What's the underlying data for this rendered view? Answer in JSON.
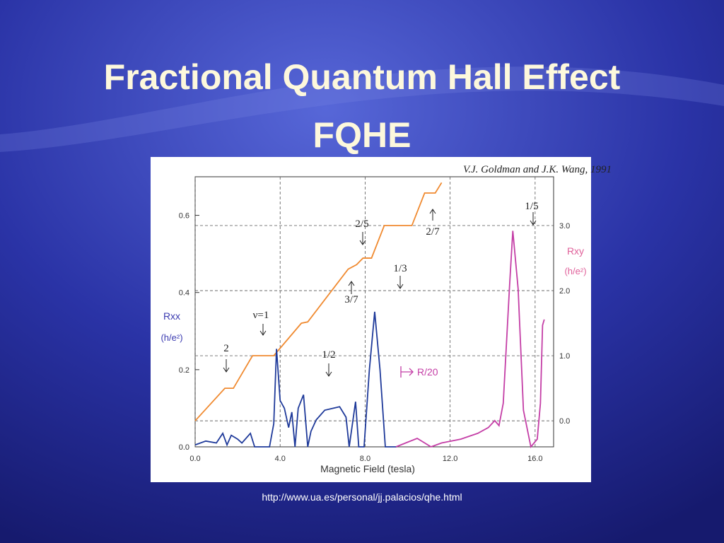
{
  "slide": {
    "title": [
      "Fractional Quantum Hall Effect",
      "FQHE"
    ],
    "caption": "http://www.ua.es/personal/jj.palacios/qhe.html"
  },
  "chart_data": {
    "type": "line",
    "x_label": "Magnetic Field (tesla)",
    "y_label": "Rxx",
    "y_units": "(h/e²)",
    "y2_label": "Rxy",
    "y2_units": "(h/e²)",
    "annotations": [
      "V.J. Goldman and J.K. Wang, 1991",
      "ν=1",
      "2",
      "2/5",
      "2/7",
      "1/3",
      "3/7",
      "1/2",
      "1/5"
    ],
    "xlim": [
      0,
      16.87
    ],
    "xticks": [
      {
        "value": 0,
        "label": "0.0"
      },
      {
        "value": 4,
        "label": "4.0"
      },
      {
        "value": 8,
        "label": "8.0"
      },
      {
        "value": 12,
        "label": "12.0"
      },
      {
        "value": 16,
        "label": "16.0"
      }
    ],
    "ylim": [
      0,
      0.7
    ],
    "yticks": [
      {
        "value": 0,
        "label": "0.0"
      },
      {
        "value": 0.2,
        "label": "0.2"
      },
      {
        "value": 0.4,
        "label": "0.4"
      },
      {
        "value": 0.6,
        "label": "0.6"
      }
    ],
    "y2lim": [
      -0.4,
      3.75
    ],
    "y2ticks": [
      {
        "value": 0,
        "label": "0.0"
      },
      {
        "value": 1,
        "label": "1.0"
      },
      {
        "value": 2,
        "label": "2.0"
      },
      {
        "value": 3,
        "label": "3.0"
      }
    ],
    "grid": true,
    "series": [
      {
        "name": "Rxy",
        "color": "#f08a30",
        "axis": "y2",
        "x": [
          0,
          1.4,
          1.8,
          2.7,
          3.7,
          5.0,
          5.3,
          7.2,
          7.6,
          7.9,
          8.3,
          8.9,
          10.2,
          10.8,
          11.3,
          11.6
        ],
        "values": [
          0.0,
          0.5,
          0.5,
          1.0,
          1.0,
          1.5,
          1.52,
          2.33,
          2.4,
          2.5,
          2.5,
          3.0,
          3.0,
          3.5,
          3.5,
          3.66
        ]
      },
      {
        "name": "Rxx",
        "color": "#1f3a9a",
        "x": [
          0,
          0.5,
          1.0,
          1.3,
          1.5,
          1.7,
          2.0,
          2.2,
          2.6,
          2.8,
          3.1,
          3.5,
          3.7,
          3.83,
          4.0,
          4.2,
          4.4,
          4.55,
          4.7,
          4.85,
          5.1,
          5.3,
          5.45,
          5.7,
          6.1,
          6.5,
          6.8,
          7.1,
          7.25,
          7.55,
          7.7,
          7.95,
          8.2,
          8.45,
          8.7,
          8.95,
          9.5
        ],
        "values": [
          0.005,
          0.015,
          0.01,
          0.035,
          0.005,
          0.03,
          0.02,
          0.01,
          0.035,
          0.0,
          0.0,
          0.0,
          0.06,
          0.254,
          0.12,
          0.1,
          0.05,
          0.09,
          0.0,
          0.1,
          0.135,
          0.0,
          0.04,
          0.07,
          0.095,
          0.1,
          0.104,
          0.077,
          0.0,
          0.117,
          0.0,
          0.0,
          0.2,
          0.35,
          0.2,
          0.0,
          0.0
        ]
      },
      {
        "name": "R/20",
        "color": "#c43ea6",
        "x": [
          9.45,
          10.45,
          11.1,
          11.6,
          12.5,
          13.3,
          13.8,
          14.1,
          14.3,
          14.5,
          14.8,
          14.95,
          15.2,
          15.45,
          15.8,
          16.1,
          16.25,
          16.35,
          16.43
        ],
        "values": [
          0.0,
          0.022,
          0.0,
          0.01,
          0.02,
          0.035,
          0.05,
          0.068,
          0.055,
          0.113,
          0.42,
          0.56,
          0.41,
          0.095,
          0.0,
          0.02,
          0.113,
          0.315,
          0.33
        ]
      }
    ]
  }
}
